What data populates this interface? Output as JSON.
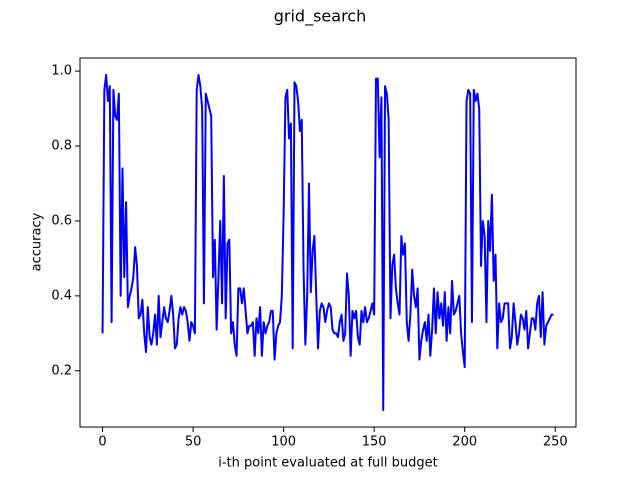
{
  "chart_data": {
    "type": "line",
    "title": "grid_search",
    "x_label": "i-th point evaluated at full budget",
    "y_label": "accuracy",
    "x": [
      0,
      1,
      2,
      3,
      4,
      5,
      6,
      7,
      8,
      9,
      10,
      11,
      12,
      13,
      14,
      15,
      16,
      17,
      18,
      19,
      20,
      21,
      22,
      23,
      24,
      25,
      26,
      27,
      28,
      29,
      30,
      31,
      32,
      33,
      34,
      35,
      36,
      37,
      38,
      39,
      40,
      41,
      42,
      43,
      44,
      45,
      46,
      47,
      48,
      49,
      50,
      51,
      52,
      53,
      54,
      55,
      56,
      57,
      58,
      59,
      60,
      61,
      62,
      63,
      64,
      65,
      66,
      67,
      68,
      69,
      70,
      71,
      72,
      73,
      74,
      75,
      76,
      77,
      78,
      79,
      80,
      81,
      82,
      83,
      84,
      85,
      86,
      87,
      88,
      89,
      90,
      91,
      92,
      93,
      94,
      95,
      96,
      97,
      98,
      99,
      100,
      101,
      102,
      103,
      104,
      105,
      106,
      107,
      108,
      109,
      110,
      111,
      112,
      113,
      114,
      115,
      116,
      117,
      118,
      119,
      120,
      121,
      122,
      123,
      124,
      125,
      126,
      127,
      128,
      129,
      130,
      131,
      132,
      133,
      134,
      135,
      136,
      137,
      138,
      139,
      140,
      141,
      142,
      143,
      144,
      145,
      146,
      147,
      148,
      149,
      150,
      151,
      152,
      153,
      154,
      155,
      156,
      157,
      158,
      159,
      160,
      161,
      162,
      163,
      164,
      165,
      166,
      167,
      168,
      169,
      170,
      171,
      172,
      173,
      174,
      175,
      176,
      177,
      178,
      179,
      180,
      181,
      182,
      183,
      184,
      185,
      186,
      187,
      188,
      189,
      190,
      191,
      192,
      193,
      194,
      195,
      196,
      197,
      198,
      199,
      200,
      201,
      202,
      203,
      204,
      205,
      206,
      207,
      208,
      209,
      210,
      211,
      212,
      213,
      214,
      215,
      216,
      217,
      218,
      219,
      220,
      221,
      222,
      223,
      224,
      225,
      226,
      227,
      228,
      229,
      230,
      231,
      232,
      233,
      234,
      235,
      236,
      237,
      238,
      239,
      240,
      241,
      242,
      243,
      244,
      245,
      246,
      247,
      248,
      249
    ],
    "series": [
      {
        "color": "#0000ff",
        "values": [
          0.3,
          0.95,
          0.99,
          0.92,
          0.96,
          0.33,
          0.95,
          0.88,
          0.87,
          0.94,
          0.4,
          0.74,
          0.45,
          0.65,
          0.37,
          0.4,
          0.42,
          0.45,
          0.53,
          0.48,
          0.34,
          0.35,
          0.39,
          0.3,
          0.25,
          0.37,
          0.29,
          0.27,
          0.3,
          0.35,
          0.27,
          0.4,
          0.29,
          0.33,
          0.37,
          0.34,
          0.33,
          0.36,
          0.4,
          0.35,
          0.26,
          0.27,
          0.34,
          0.37,
          0.35,
          0.37,
          0.36,
          0.33,
          0.28,
          0.33,
          0.32,
          0.3,
          0.95,
          0.99,
          0.96,
          0.9,
          0.38,
          0.94,
          0.92,
          0.9,
          0.88,
          0.45,
          0.55,
          0.31,
          0.45,
          0.6,
          0.38,
          0.72,
          0.34,
          0.54,
          0.55,
          0.3,
          0.33,
          0.27,
          0.24,
          0.42,
          0.42,
          0.38,
          0.42,
          0.36,
          0.3,
          0.32,
          0.32,
          0.33,
          0.24,
          0.34,
          0.3,
          0.37,
          0.24,
          0.33,
          0.3,
          0.32,
          0.33,
          0.36,
          0.36,
          0.23,
          0.3,
          0.32,
          0.33,
          0.4,
          0.62,
          0.93,
          0.95,
          0.82,
          0.86,
          0.26,
          0.97,
          0.96,
          0.92,
          0.84,
          0.87,
          0.47,
          0.27,
          0.4,
          0.7,
          0.41,
          0.52,
          0.56,
          0.4,
          0.26,
          0.36,
          0.38,
          0.37,
          0.33,
          0.36,
          0.38,
          0.37,
          0.31,
          0.3,
          0.3,
          0.29,
          0.33,
          0.35,
          0.28,
          0.3,
          0.46,
          0.4,
          0.24,
          0.36,
          0.34,
          0.36,
          0.29,
          0.27,
          0.36,
          0.33,
          0.37,
          0.33,
          0.34,
          0.36,
          0.38,
          0.35,
          0.98,
          0.98,
          0.77,
          0.93,
          0.095,
          0.96,
          0.94,
          0.87,
          0.34,
          0.48,
          0.51,
          0.42,
          0.38,
          0.35,
          0.56,
          0.51,
          0.54,
          0.33,
          0.28,
          0.35,
          0.47,
          0.4,
          0.37,
          0.42,
          0.23,
          0.28,
          0.31,
          0.33,
          0.28,
          0.35,
          0.24,
          0.31,
          0.42,
          0.3,
          0.41,
          0.34,
          0.38,
          0.32,
          0.41,
          0.28,
          0.37,
          0.3,
          0.44,
          0.35,
          0.36,
          0.38,
          0.4,
          0.3,
          0.25,
          0.21,
          0.92,
          0.95,
          0.94,
          0.33,
          0.95,
          0.92,
          0.94,
          0.9,
          0.48,
          0.6,
          0.56,
          0.33,
          0.6,
          0.52,
          0.67,
          0.44,
          0.51,
          0.26,
          0.38,
          0.33,
          0.34,
          0.38,
          0.38,
          0.38,
          0.26,
          0.29,
          0.38,
          0.33,
          0.27,
          0.3,
          0.35,
          0.34,
          0.31,
          0.36,
          0.26,
          0.3,
          0.34,
          0.34,
          0.31,
          0.38,
          0.4,
          0.29,
          0.41,
          0.27,
          0.32,
          0.33,
          0.34,
          0.35,
          0.35
        ]
      }
    ],
    "xlim": [
      -12.45,
      261.45
    ],
    "ylim": [
      0.05,
      1.035
    ],
    "xticks": [
      0,
      50,
      100,
      150,
      200,
      250
    ],
    "yticks": [
      0.2,
      0.4,
      0.6,
      0.8,
      {
        "value": 1,
        "label": "1.0"
      }
    ],
    "grid": false
  }
}
